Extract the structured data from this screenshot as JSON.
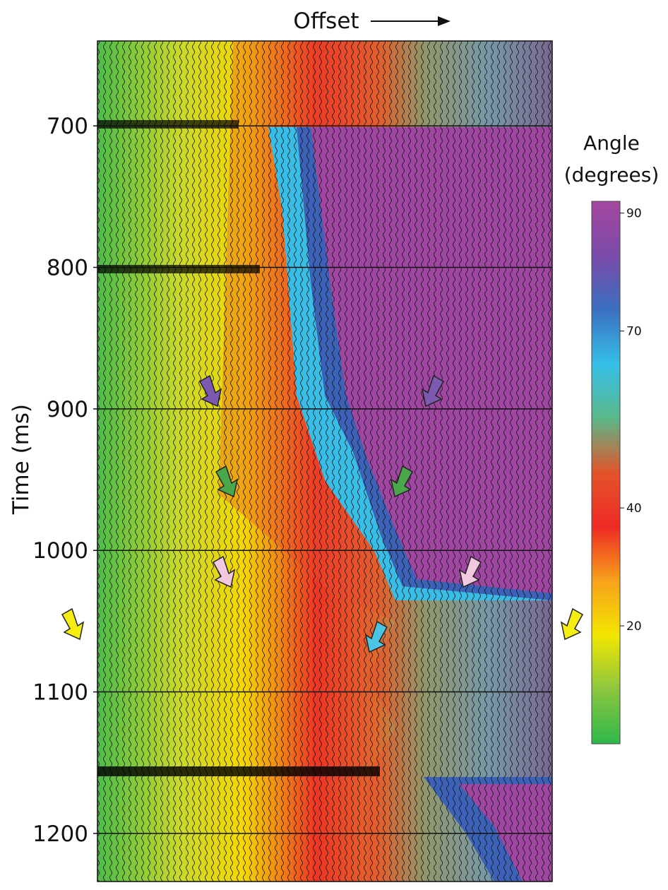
{
  "chart_data": {
    "type": "seismic-gather",
    "title": "Offset",
    "ylabel": "Time (ms)",
    "ylim": [
      640,
      1234
    ],
    "yticks": [
      700,
      800,
      900,
      1000,
      1100,
      1200
    ],
    "grid": true,
    "colorbar": {
      "title": [
        "Angle",
        "(degrees)"
      ],
      "lim": [
        0,
        92
      ],
      "ticks": [
        20,
        40,
        70,
        90
      ],
      "colors": [
        "#2db84a",
        "#8cc63f",
        "#f2e600",
        "#f7a21b",
        "#ee2a24",
        "#e2542a",
        "#5ab88a",
        "#36c0e8",
        "#3a6fc0",
        "#7a4aa8",
        "#a548a0"
      ]
    }
  }
}
